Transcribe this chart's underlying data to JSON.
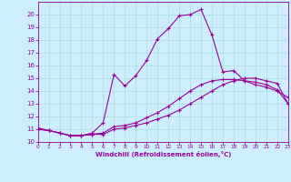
{
  "xlabel": "Windchill (Refroidissement éolien,°C)",
  "bg_color": "#cceeff",
  "grid_color": "#aadddd",
  "line_color": "#990099",
  "xlim": [
    0,
    23
  ],
  "ylim": [
    10,
    21
  ],
  "xticks": [
    0,
    1,
    2,
    3,
    4,
    5,
    6,
    7,
    8,
    9,
    10,
    11,
    12,
    13,
    14,
    15,
    16,
    17,
    18,
    19,
    20,
    21,
    22,
    23
  ],
  "yticks": [
    10,
    11,
    12,
    13,
    14,
    15,
    16,
    17,
    18,
    19,
    20
  ],
  "line1_x": [
    0,
    1,
    2,
    3,
    4,
    5,
    6,
    7,
    8,
    9,
    10,
    11,
    12,
    13,
    14,
    15,
    16,
    17,
    18,
    19,
    20,
    21,
    22,
    23
  ],
  "line1_y": [
    11.0,
    10.9,
    10.7,
    10.5,
    10.5,
    10.6,
    10.6,
    11.0,
    11.1,
    11.3,
    11.5,
    11.8,
    12.1,
    12.5,
    13.0,
    13.5,
    14.0,
    14.5,
    14.8,
    15.0,
    15.0,
    14.8,
    14.6,
    13.0
  ],
  "line2_x": [
    0,
    1,
    2,
    3,
    4,
    5,
    6,
    7,
    8,
    9,
    10,
    11,
    12,
    13,
    14,
    15,
    16,
    17,
    18,
    19,
    20,
    21,
    22,
    23
  ],
  "line2_y": [
    11.0,
    10.9,
    10.7,
    10.5,
    10.5,
    10.6,
    10.7,
    11.2,
    11.3,
    11.5,
    11.9,
    12.3,
    12.8,
    13.4,
    14.0,
    14.5,
    14.8,
    14.9,
    14.9,
    14.8,
    14.5,
    14.3,
    14.0,
    13.5
  ],
  "line3_x": [
    0,
    1,
    2,
    3,
    4,
    5,
    6,
    7,
    8,
    9,
    10,
    11,
    12,
    13,
    14,
    15,
    16,
    17,
    18,
    19,
    20,
    21,
    22,
    23
  ],
  "line3_y": [
    11.1,
    10.9,
    10.7,
    10.5,
    10.5,
    10.7,
    11.5,
    15.3,
    14.4,
    15.2,
    16.4,
    18.1,
    18.9,
    19.9,
    20.0,
    20.4,
    18.4,
    15.5,
    15.6,
    14.8,
    14.7,
    14.5,
    14.1,
    13.0
  ]
}
